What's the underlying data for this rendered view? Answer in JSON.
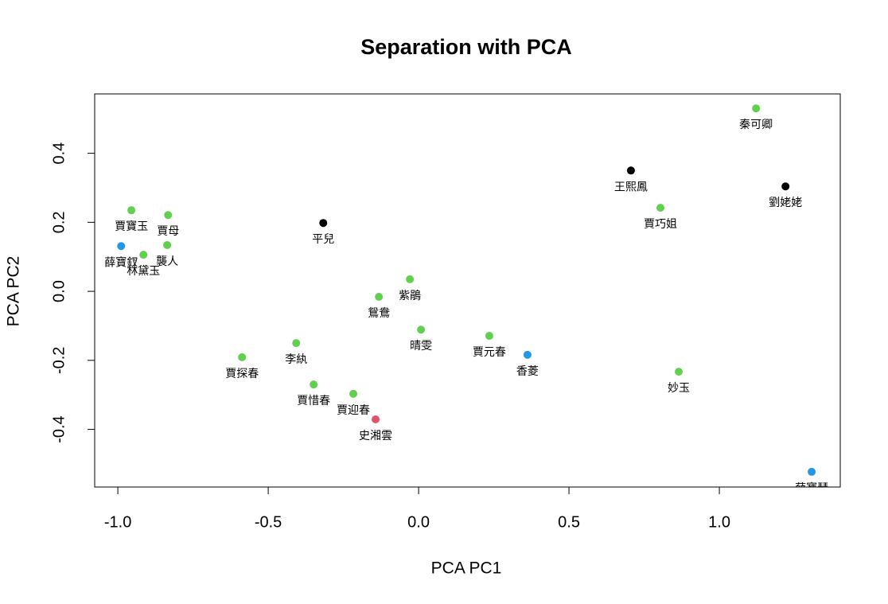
{
  "chart_data": {
    "type": "scatter",
    "title": "Separation with PCA",
    "x_label": "PCA PC1",
    "y_label": "PCA PC2",
    "x": [
      -0.955,
      -0.833,
      -0.989,
      -0.915,
      -0.836,
      -0.317,
      -0.029,
      -0.132,
      0.008,
      -0.407,
      -0.587,
      -0.349,
      -0.217,
      -0.143,
      0.235,
      0.362,
      0.865,
      0.706,
      0.804,
      1.122,
      1.22,
      1.307
    ],
    "y": [
      0.235,
      0.221,
      0.131,
      0.106,
      0.134,
      0.198,
      0.035,
      -0.016,
      -0.111,
      -0.15,
      -0.191,
      -0.27,
      -0.297,
      -0.371,
      -0.129,
      -0.184,
      -0.233,
      0.35,
      0.242,
      0.53,
      0.304,
      -0.523
    ],
    "labels": [
      "賈寶玉",
      "賈母",
      "薛寶釵",
      "林黛玉",
      "襲人",
      "平兒",
      "紫鵑",
      "鴛鴦",
      "晴雯",
      "李紈",
      "賈探春",
      "賈惜春",
      "賈迎春",
      "史湘雲",
      "賈元春",
      "香菱",
      "妙玉",
      "王熙鳳",
      "賈巧姐",
      "秦可卿",
      "劉姥姥",
      "薛寶琴"
    ],
    "colors": [
      "#61D04F",
      "#61D04F",
      "#2297E6",
      "#61D04F",
      "#61D04F",
      "#000000",
      "#61D04F",
      "#61D04F",
      "#61D04F",
      "#61D04F",
      "#61D04F",
      "#61D04F",
      "#61D04F",
      "#DF536B",
      "#61D04F",
      "#2297E6",
      "#61D04F",
      "#000000",
      "#61D04F",
      "#61D04F",
      "#000000",
      "#2297E6"
    ],
    "xlim": [
      -1.077,
      1.402
    ],
    "ylim": [
      -0.567,
      0.572
    ],
    "xticks": [
      {
        "value": -1,
        "label": "-1.0"
      },
      -0.5,
      {
        "value": 0,
        "label": "0.0"
      },
      0.5,
      {
        "value": 1,
        "label": "1.0"
      }
    ],
    "yticks": [
      -0.4,
      -0.2,
      {
        "value": 0,
        "label": "0.0"
      },
      0.2,
      0.4
    ]
  }
}
